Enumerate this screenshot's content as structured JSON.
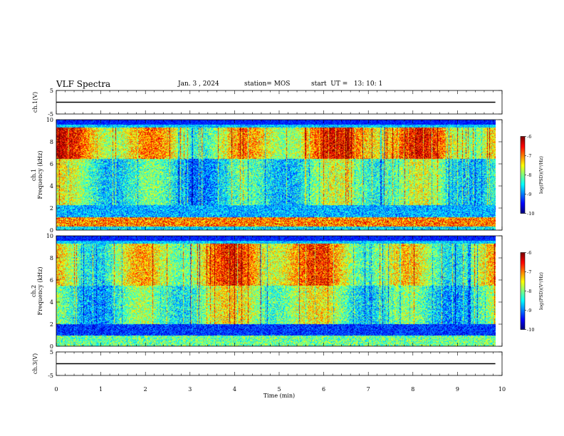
{
  "header": {
    "title": "VLF Spectra",
    "date": "Jan. 3 , 2024",
    "station": "station= MOS",
    "start": "start  UT =   13: 10: 1"
  },
  "chart_data": [
    {
      "type": "line",
      "panel": "ch1-waveform",
      "ylabel": "ch.1(V)",
      "ylim": [
        -5,
        5
      ],
      "yticks": [
        "5",
        "-5"
      ],
      "xlim": [
        0,
        10
      ],
      "series": [
        {
          "x": [
            0,
            9.85
          ],
          "values": [
            0,
            0
          ]
        }
      ]
    },
    {
      "type": "heatmap",
      "panel": "ch1-spectrogram",
      "ylabel": [
        "ch.1",
        "Frequency (kHz)"
      ],
      "ylim": [
        0,
        10
      ],
      "yticks": [
        "0",
        "2",
        "4",
        "6",
        "8",
        "10"
      ],
      "xlim": [
        0,
        10
      ],
      "data_end_min": 9.85,
      "colorbar": {
        "label": "log(PSD)(V²/Hz)",
        "range": [
          -10,
          -6
        ],
        "ticks": [
          "-6",
          "-7",
          "-8",
          "-9",
          "-10"
        ]
      }
    },
    {
      "type": "heatmap",
      "panel": "ch2-spectrogram",
      "ylabel": [
        "ch.2",
        "Frequency (kHz)"
      ],
      "ylim": [
        0,
        10
      ],
      "yticks": [
        "0",
        "2",
        "4",
        "6",
        "8",
        "10"
      ],
      "xlim": [
        0,
        10
      ],
      "data_end_min": 9.85,
      "colorbar": {
        "label": "log(PSD)(V²/Hz)",
        "range": [
          -10,
          -6
        ],
        "ticks": [
          "-6",
          "-7",
          "-8",
          "-9",
          "-10"
        ]
      }
    },
    {
      "type": "line",
      "panel": "ch3-waveform",
      "ylabel": "ch.3(V)",
      "ylim": [
        -5,
        5
      ],
      "yticks": [
        "5",
        "-5"
      ],
      "xlim": [
        0,
        10
      ],
      "series": [
        {
          "x": [
            0,
            9.85
          ],
          "values": [
            0,
            0
          ]
        }
      ]
    }
  ],
  "xaxis": {
    "label": "Time (min)",
    "ticks": [
      "0",
      "1",
      "2",
      "3",
      "4",
      "5",
      "6",
      "7",
      "8",
      "9",
      "10"
    ]
  }
}
